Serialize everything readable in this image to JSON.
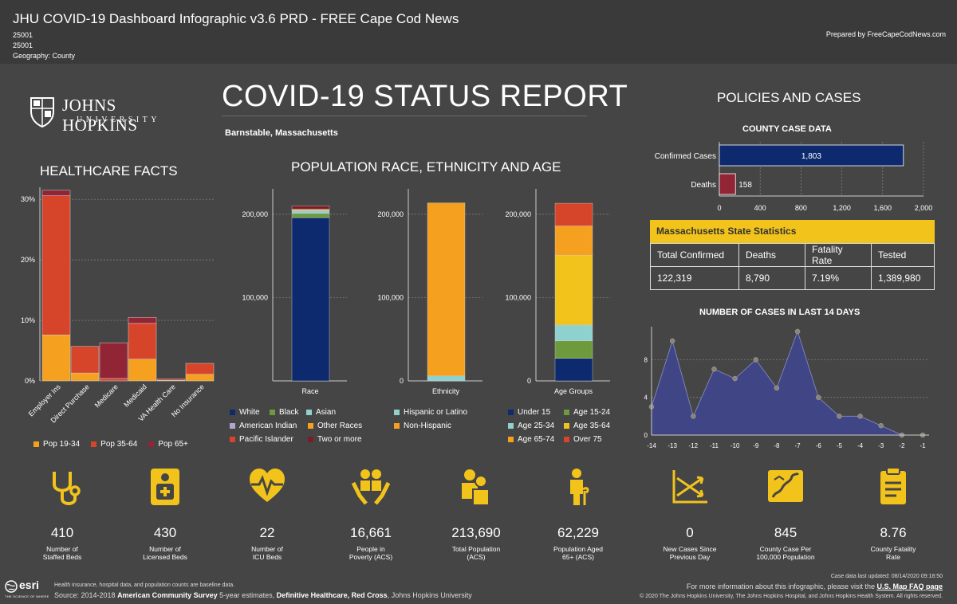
{
  "header": {
    "title": "JHU COVID-19 Dashboard Infographic v3.6 PRD - FREE Cape Cod News",
    "id1": "25001",
    "id2": "25001",
    "geography": "Geography: County",
    "prepared_by": "Prepared by FreeCapeCodNews.com"
  },
  "logo": {
    "name": "JOHNS HOPKINS",
    "sub": "UNIVERSITY"
  },
  "report_title": "COVID-19 STATUS REPORT",
  "location": "Barnstable, Massachusetts",
  "sections": {
    "healthcare": "HEALTHCARE FACTS",
    "population": "POPULATION RACE, ETHNICITY AND AGE",
    "policies": "POLICIES AND CASES",
    "county_case": "COUNTY CASE DATA",
    "cases14": "NUMBER OF CASES IN LAST 14 DAYS"
  },
  "colors": {
    "orange": "#F5A01E",
    "orange_red": "#D6452A",
    "maroon": "#912535",
    "navy": "#0E2A6E",
    "green": "#6E9A3E",
    "teal": "#8FD1CE",
    "yellow": "#F2C31B",
    "lavender": "#B4A3CC",
    "dark_red": "#7A1D26",
    "area": "#3F4585"
  },
  "chart_data": [
    {
      "type": "bar",
      "id": "healthcare",
      "categories": [
        "Employer Ins",
        "Direct Purchase",
        "Medicare",
        "Medicaid",
        "VA Health Care",
        "No Insurance"
      ],
      "series": [
        {
          "name": "Pop 19-34",
          "values": [
            7.6,
            1.3,
            0,
            3.6,
            0.1,
            1.1
          ]
        },
        {
          "name": "Pop 35-64",
          "values": [
            23.0,
            4.4,
            0.4,
            5.9,
            0.2,
            1.8
          ]
        },
        {
          "name": "Pop 65+",
          "values": [
            0.9,
            0,
            5.9,
            1.0,
            0,
            0
          ]
        }
      ],
      "y_ticks": [
        "0%",
        "10%",
        "20%",
        "30%"
      ],
      "ylim": [
        0,
        32
      ]
    },
    {
      "type": "bar",
      "id": "race",
      "xlabel": "Race",
      "stack": [
        {
          "name": "White",
          "value": 196000
        },
        {
          "name": "Black",
          "value": 5000
        },
        {
          "name": "Asian",
          "value": 3000
        },
        {
          "name": "American Indian",
          "value": 500
        },
        {
          "name": "Other Races",
          "value": 1500
        },
        {
          "name": "Pacific Islander",
          "value": 100
        },
        {
          "name": "Two or more",
          "value": 4000
        }
      ],
      "y_ticks": [
        "200,000",
        "100,000"
      ],
      "ylim": [
        0,
        220000
      ]
    },
    {
      "type": "bar",
      "id": "ethnicity",
      "xlabel": "Ethnicity",
      "stack": [
        {
          "name": "Hispanic or Latino",
          "value": 6000
        },
        {
          "name": "Non-Hispanic",
          "value": 207690
        }
      ],
      "y_ticks": [
        "200,000",
        "100,000",
        "0"
      ],
      "ylim": [
        0,
        220000
      ]
    },
    {
      "type": "bar",
      "id": "age",
      "xlabel": "Age Groups",
      "stack": [
        {
          "name": "Under 15",
          "value": 27000
        },
        {
          "name": "Age 15-24",
          "value": 21000
        },
        {
          "name": "Age 25-34",
          "value": 19000
        },
        {
          "name": "Age 35-64",
          "value": 84000
        },
        {
          "name": "Age 65-74",
          "value": 35000
        },
        {
          "name": "Over 75",
          "value": 27229
        }
      ],
      "y_ticks": [
        "200,000",
        "100,000",
        "0"
      ],
      "ylim": [
        0,
        220000
      ]
    },
    {
      "type": "bar",
      "id": "county_case",
      "orientation": "horizontal",
      "categories": [
        "Confirmed Cases",
        "Deaths"
      ],
      "values": [
        1803,
        158
      ],
      "value_labels": [
        "1,803",
        "158"
      ],
      "x_ticks": [
        "0",
        "400",
        "800",
        "1,200",
        "1,600",
        "2,000"
      ],
      "xlim": [
        0,
        2000
      ]
    },
    {
      "type": "area",
      "id": "cases14",
      "x": [
        -14,
        -13,
        -12,
        -11,
        -10,
        -9,
        -8,
        -7,
        -6,
        -5,
        -4,
        -3,
        -2,
        -1
      ],
      "values": [
        3,
        10,
        2,
        7,
        6,
        8,
        5,
        11,
        4,
        2,
        2,
        1,
        0,
        0
      ],
      "x_ticks": [
        "-14",
        "-13",
        "-12",
        "-11",
        "-10",
        "-9",
        "-8",
        "-7",
        "-6",
        "-5",
        "-4",
        "-3",
        "-2",
        "-1"
      ],
      "y_ticks": [
        "0",
        "4",
        "8"
      ],
      "ylim": [
        0,
        11
      ]
    }
  ],
  "legends": {
    "healthcare": [
      "Pop 19-34",
      "Pop 35-64",
      "Pop 65+"
    ],
    "race": [
      "White",
      "Black",
      "Asian",
      "American Indian",
      "Other Races",
      "Pacific Islander",
      "Two or more"
    ],
    "ethnicity": [
      "Hispanic or Latino",
      "Non-Hispanic"
    ],
    "age": [
      "Under 15",
      "Age 15-24",
      "Age 25-34",
      "Age 35-64",
      "Age 65-74",
      "Over 75"
    ]
  },
  "mass_stats": {
    "title": "Massachusetts State Statistics",
    "headers": [
      "Total Confirmed",
      "Deaths",
      "Fatality Rate",
      "Tested"
    ],
    "values": [
      "122,319",
      "8,790",
      "7.19%",
      "1,389,980"
    ]
  },
  "stats": [
    {
      "value": "410",
      "label1": "Number of",
      "label2": "Staffed Beds",
      "icon": "stethoscope-icon"
    },
    {
      "value": "430",
      "label1": "Number of",
      "label2": "Licensed Beds",
      "icon": "hospital-bed-icon"
    },
    {
      "value": "22",
      "label1": "Number of",
      "label2": "ICU Beds",
      "icon": "heart-pulse-icon"
    },
    {
      "value": "16,661",
      "label1": "People in",
      "label2": "Poverty (ACS)",
      "icon": "hands-people-icon"
    },
    {
      "value": "213,690",
      "label1": "Total Population",
      "label2": "(ACS)",
      "icon": "population-icon"
    },
    {
      "value": "62,229",
      "label1": "Population Aged",
      "label2": "65+ (ACS)",
      "icon": "elderly-icon"
    },
    {
      "value": "0",
      "label1": "New Cases Since",
      "label2": "Previous Day",
      "icon": "trend-cross-icon"
    },
    {
      "value": "845",
      "label1": "County Case Per",
      "label2": "100,000 Population",
      "icon": "county-map-icon"
    },
    {
      "value": "8.76",
      "label1": "County Fatality",
      "label2": "Rate",
      "icon": "clipboard-icon"
    }
  ],
  "footer": {
    "note": "Health insurance, hospital data, and population counts are baseline data.",
    "source_prefix": "Source: 2014-2018 ",
    "source_b1": "American Community Survey",
    "source_mid1": " 5-year estimates, ",
    "source_b2": "Definitive Healthcare, Red Cross",
    "source_suffix": ", Johns Hopkins University",
    "updated": "Case data last updated: 08/14/2020 09:18:50",
    "more_prefix": "For more information about this infographic, please visit the ",
    "more_link": "U.S. Map FAQ page",
    "copyright": "© 2020 The Johns Hopkins University, The Johns Hopkins Hospital, and Johns Hopkins Health System. All rights reserved.",
    "esri": "esri",
    "esri_tag": "THE SCIENCE OF WHERE"
  }
}
